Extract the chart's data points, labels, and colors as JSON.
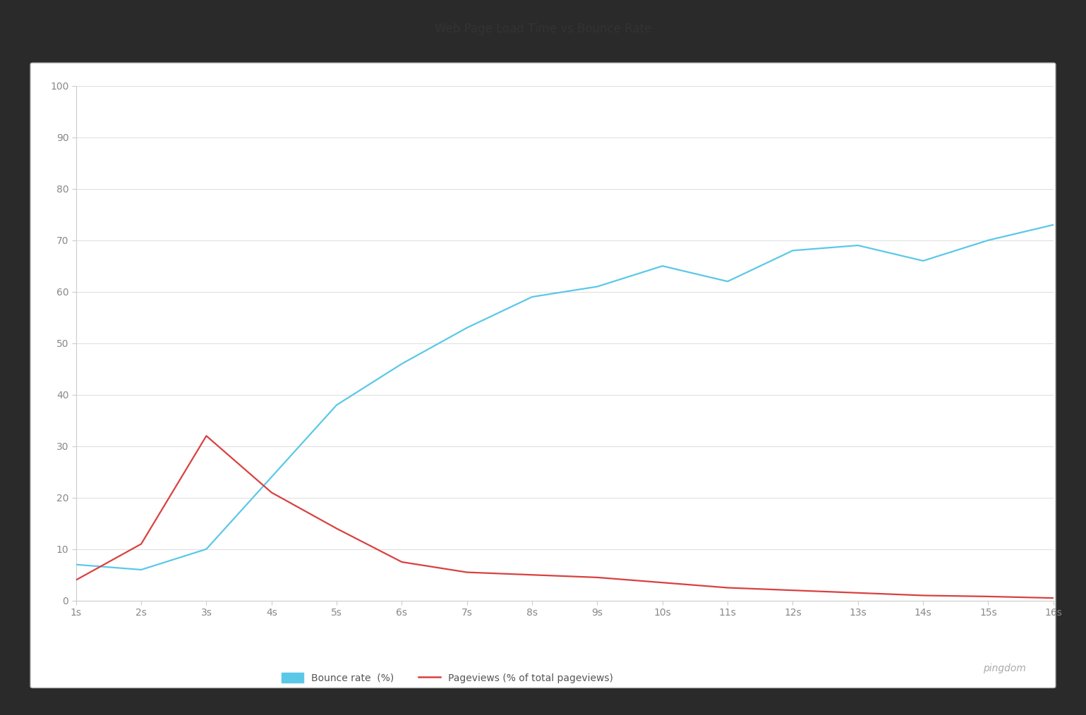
{
  "x_labels": [
    "1s",
    "2s",
    "3s",
    "4s",
    "5s",
    "6s",
    "7s",
    "8s",
    "9s",
    "10s",
    "11s",
    "12s",
    "13s",
    "14s",
    "15s",
    "16s"
  ],
  "x_values": [
    1,
    2,
    3,
    4,
    5,
    6,
    7,
    8,
    9,
    10,
    11,
    12,
    13,
    14,
    15,
    16
  ],
  "bounce_rate": [
    7,
    6,
    10,
    24,
    38,
    46,
    53,
    59,
    61,
    65,
    62,
    68,
    69,
    66,
    70,
    73
  ],
  "pageviews": [
    4,
    11,
    32,
    21,
    14,
    7.5,
    5.5,
    5,
    4.5,
    3.5,
    2.5,
    2,
    1.5,
    1,
    0.8,
    0.5
  ],
  "bounce_color": "#5bc8e8",
  "pageview_color": "#d94040",
  "chart_bg_color": "#ffffff",
  "title_fontsize": 12,
  "axis_fontsize": 10,
  "legend_label_bounce": "Bounce rate  (%)",
  "legend_label_pageviews": "Pageviews (% of total pageviews)",
  "ylim": [
    0,
    100
  ],
  "yticks": [
    0,
    10,
    20,
    30,
    40,
    50,
    60,
    70,
    80,
    90,
    100
  ],
  "grid_color": "#dddddd",
  "spine_color": "#cccccc",
  "outer_bg": "#2a2a2a",
  "tick_label_color": "#888888",
  "title_color": "#333333"
}
